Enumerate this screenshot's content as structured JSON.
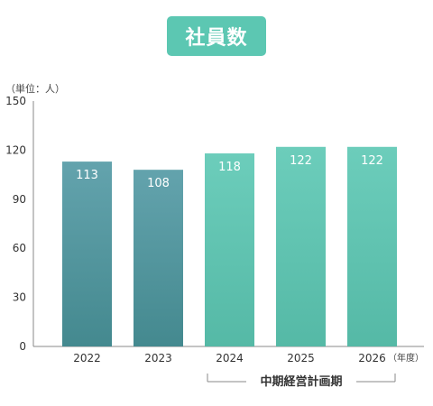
{
  "chart_data": {
    "type": "bar",
    "title": "社員数",
    "unit_label": "（単位：人）",
    "x_unit_label": "（年度）",
    "categories": [
      "2022",
      "2023",
      "2024",
      "2025",
      "2026"
    ],
    "values": [
      113,
      108,
      118,
      122,
      122
    ],
    "ylim": [
      0,
      150
    ],
    "yticks": [
      0,
      30,
      60,
      90,
      120,
      150
    ],
    "grid": false,
    "bracket_label": "中期経営計画期",
    "bracket_categories": [
      "2024",
      "2025",
      "2026"
    ]
  },
  "colors": {
    "badge": "#5cc7b2",
    "bar_top_dark": "#63a3ad",
    "bar_bottom_dark": "#44898f",
    "bar_top_light": "#6ccdbb",
    "bar_bottom_light": "#55b9a6",
    "axis": "#888888"
  }
}
